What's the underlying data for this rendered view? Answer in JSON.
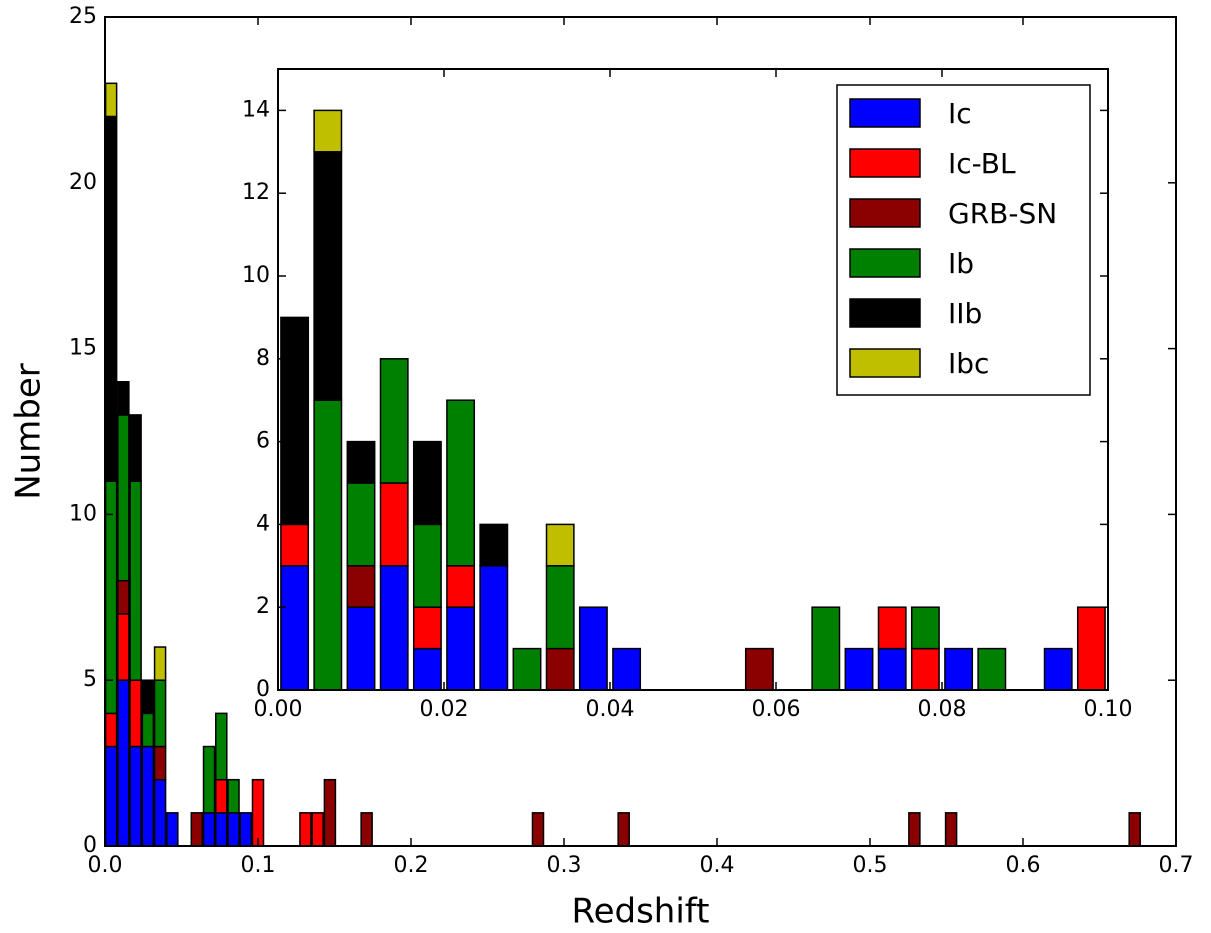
{
  "chart_data": [
    {
      "type": "bar",
      "stacked": true,
      "xlabel": "Redshift",
      "ylabel": "Number",
      "xlim": [
        0,
        0.7
      ],
      "ylim": [
        0,
        25
      ],
      "xticks": [
        {
          "value": 0,
          "label": "0.0"
        },
        0.1,
        0.2,
        0.3,
        0.4,
        0.5,
        0.6,
        0.7
      ],
      "yticks": [
        0,
        5,
        10,
        15,
        20,
        25
      ],
      "x": [
        0.004,
        0.012,
        0.02,
        0.028,
        0.036,
        0.044,
        0.06,
        0.068,
        0.076,
        0.084,
        0.092,
        0.1,
        0.131,
        0.139,
        0.147,
        0.171,
        0.283,
        0.339,
        0.529,
        0.553,
        0.673
      ],
      "series": [
        {
          "name": "Ic",
          "color": "#0000ff",
          "values": [
            3,
            5,
            3,
            3,
            2,
            1,
            0,
            1,
            1,
            1,
            1,
            0,
            0,
            0,
            0,
            0,
            0,
            0,
            0,
            0,
            0
          ]
        },
        {
          "name": "Ic-BL",
          "color": "#ff0000",
          "values": [
            1,
            2,
            2,
            0,
            0,
            0,
            0,
            0,
            1,
            0,
            0,
            2,
            1,
            1,
            0,
            0,
            0,
            0,
            0,
            0,
            0
          ]
        },
        {
          "name": "GRB-SN",
          "color": "#8b0000",
          "values": [
            0,
            1,
            0,
            0,
            1,
            0,
            1,
            0,
            0,
            0,
            0,
            0,
            0,
            0,
            2,
            1,
            1,
            1,
            1,
            1,
            1
          ]
        },
        {
          "name": "Ib",
          "color": "#008000",
          "values": [
            7,
            5,
            6,
            1,
            2,
            0,
            0,
            2,
            2,
            1,
            0,
            0,
            0,
            0,
            0,
            0,
            0,
            0,
            0,
            0,
            0
          ]
        },
        {
          "name": "IIb",
          "color": "#000000",
          "values": [
            11,
            1,
            2,
            1,
            0,
            0,
            0,
            0,
            0,
            0,
            0,
            0,
            0,
            0,
            0,
            0,
            0,
            0,
            0,
            0,
            0
          ]
        },
        {
          "name": "Ibc",
          "color": "#bfbf00",
          "values": [
            1,
            0,
            0,
            0,
            1,
            0,
            0,
            0,
            0,
            0,
            0,
            0,
            0,
            0,
            0,
            0,
            0,
            0,
            0,
            0,
            0
          ]
        }
      ]
    },
    {
      "type": "bar",
      "stacked": true,
      "legend": "upper right",
      "xlim": [
        0,
        0.1
      ],
      "ylim": [
        0,
        15
      ],
      "xticks": [
        {
          "value": 0,
          "label": "0.00"
        },
        {
          "value": 0.02,
          "label": "0.02"
        },
        {
          "value": 0.04,
          "label": "0.04"
        },
        {
          "value": 0.06,
          "label": "0.06"
        },
        {
          "value": 0.08,
          "label": "0.08"
        },
        {
          "value": 0.1,
          "label": "0.10"
        }
      ],
      "yticks": [
        0,
        2,
        4,
        6,
        8,
        10,
        12,
        14
      ],
      "x": [
        0.002,
        0.006,
        0.01,
        0.014,
        0.018,
        0.022,
        0.026,
        0.03,
        0.034,
        0.038,
        0.042,
        0.046,
        0.05,
        0.054,
        0.058,
        0.062,
        0.066,
        0.07,
        0.074,
        0.078,
        0.082,
        0.086,
        0.09,
        0.094,
        0.098
      ],
      "series": [
        {
          "name": "Ic",
          "color": "#0000ff",
          "values": [
            3,
            0,
            2,
            3,
            1,
            2,
            3,
            0,
            0,
            2,
            1,
            0,
            0,
            0,
            0,
            0,
            0,
            1,
            1,
            0,
            1,
            0,
            0,
            1,
            0
          ]
        },
        {
          "name": "Ic-BL",
          "color": "#ff0000",
          "values": [
            1,
            0,
            0,
            2,
            1,
            1,
            0,
            0,
            0,
            0,
            0,
            0,
            0,
            0,
            0,
            0,
            0,
            0,
            1,
            1,
            0,
            0,
            0,
            0,
            2
          ]
        },
        {
          "name": "GRB-SN",
          "color": "#8b0000",
          "values": [
            0,
            0,
            1,
            0,
            0,
            0,
            0,
            0,
            1,
            0,
            0,
            0,
            0,
            0,
            1,
            0,
            0,
            0,
            0,
            0,
            0,
            0,
            0,
            0,
            0
          ]
        },
        {
          "name": "Ib",
          "color": "#008000",
          "values": [
            0,
            7,
            2,
            3,
            2,
            4,
            0,
            1,
            2,
            0,
            0,
            0,
            0,
            0,
            0,
            0,
            2,
            0,
            0,
            1,
            0,
            1,
            0,
            0,
            0
          ]
        },
        {
          "name": "IIb",
          "color": "#000000",
          "values": [
            5,
            6,
            1,
            0,
            2,
            0,
            1,
            0,
            0,
            0,
            0,
            0,
            0,
            0,
            0,
            0,
            0,
            0,
            0,
            0,
            0,
            0,
            0,
            0,
            0
          ]
        },
        {
          "name": "Ibc",
          "color": "#bfbf00",
          "values": [
            0,
            1,
            0,
            0,
            0,
            0,
            0,
            0,
            1,
            0,
            0,
            0,
            0,
            0,
            0,
            0,
            0,
            0,
            0,
            0,
            0,
            0,
            0,
            0,
            0
          ]
        }
      ]
    }
  ]
}
